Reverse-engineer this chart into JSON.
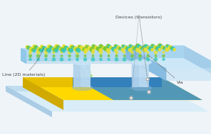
{
  "bg_color": "#eef4f8",
  "label_line": "Line (2D materials)",
  "label_via": "Via",
  "label_devices": "Devices (transistors)",
  "colors": {
    "beam_top": "#ddf0fa",
    "beam_top2": "#c8e8f8",
    "beam_front": "#b0d8f0",
    "beam_side": "#90c8e8",
    "beam_dark": "#78b8e0",
    "rarm_top": "#cce8f8",
    "rarm_top2": "#b8def5",
    "rarm_front": "#a8d4f0",
    "rarm_side": "#88bce0",
    "via_light": "#c8e4f5",
    "via_mid": "#a8ccec",
    "via_dark": "#88b4e0",
    "base_top": "#d8edf8",
    "base_front": "#c0ddef",
    "base_side": "#aacce5",
    "sub_top": "#ffd800",
    "sub_front": "#e8c000",
    "sub_side": "#d0aa00",
    "blue_stripe": "#3a8fd0",
    "blue_stripe2": "#2878c0",
    "dot_yellow": "#e8e030",
    "dot_green": "#78c838",
    "dot_cyan": "#38c8b8",
    "text_dark": "#444444",
    "annot_line": "#666666"
  }
}
